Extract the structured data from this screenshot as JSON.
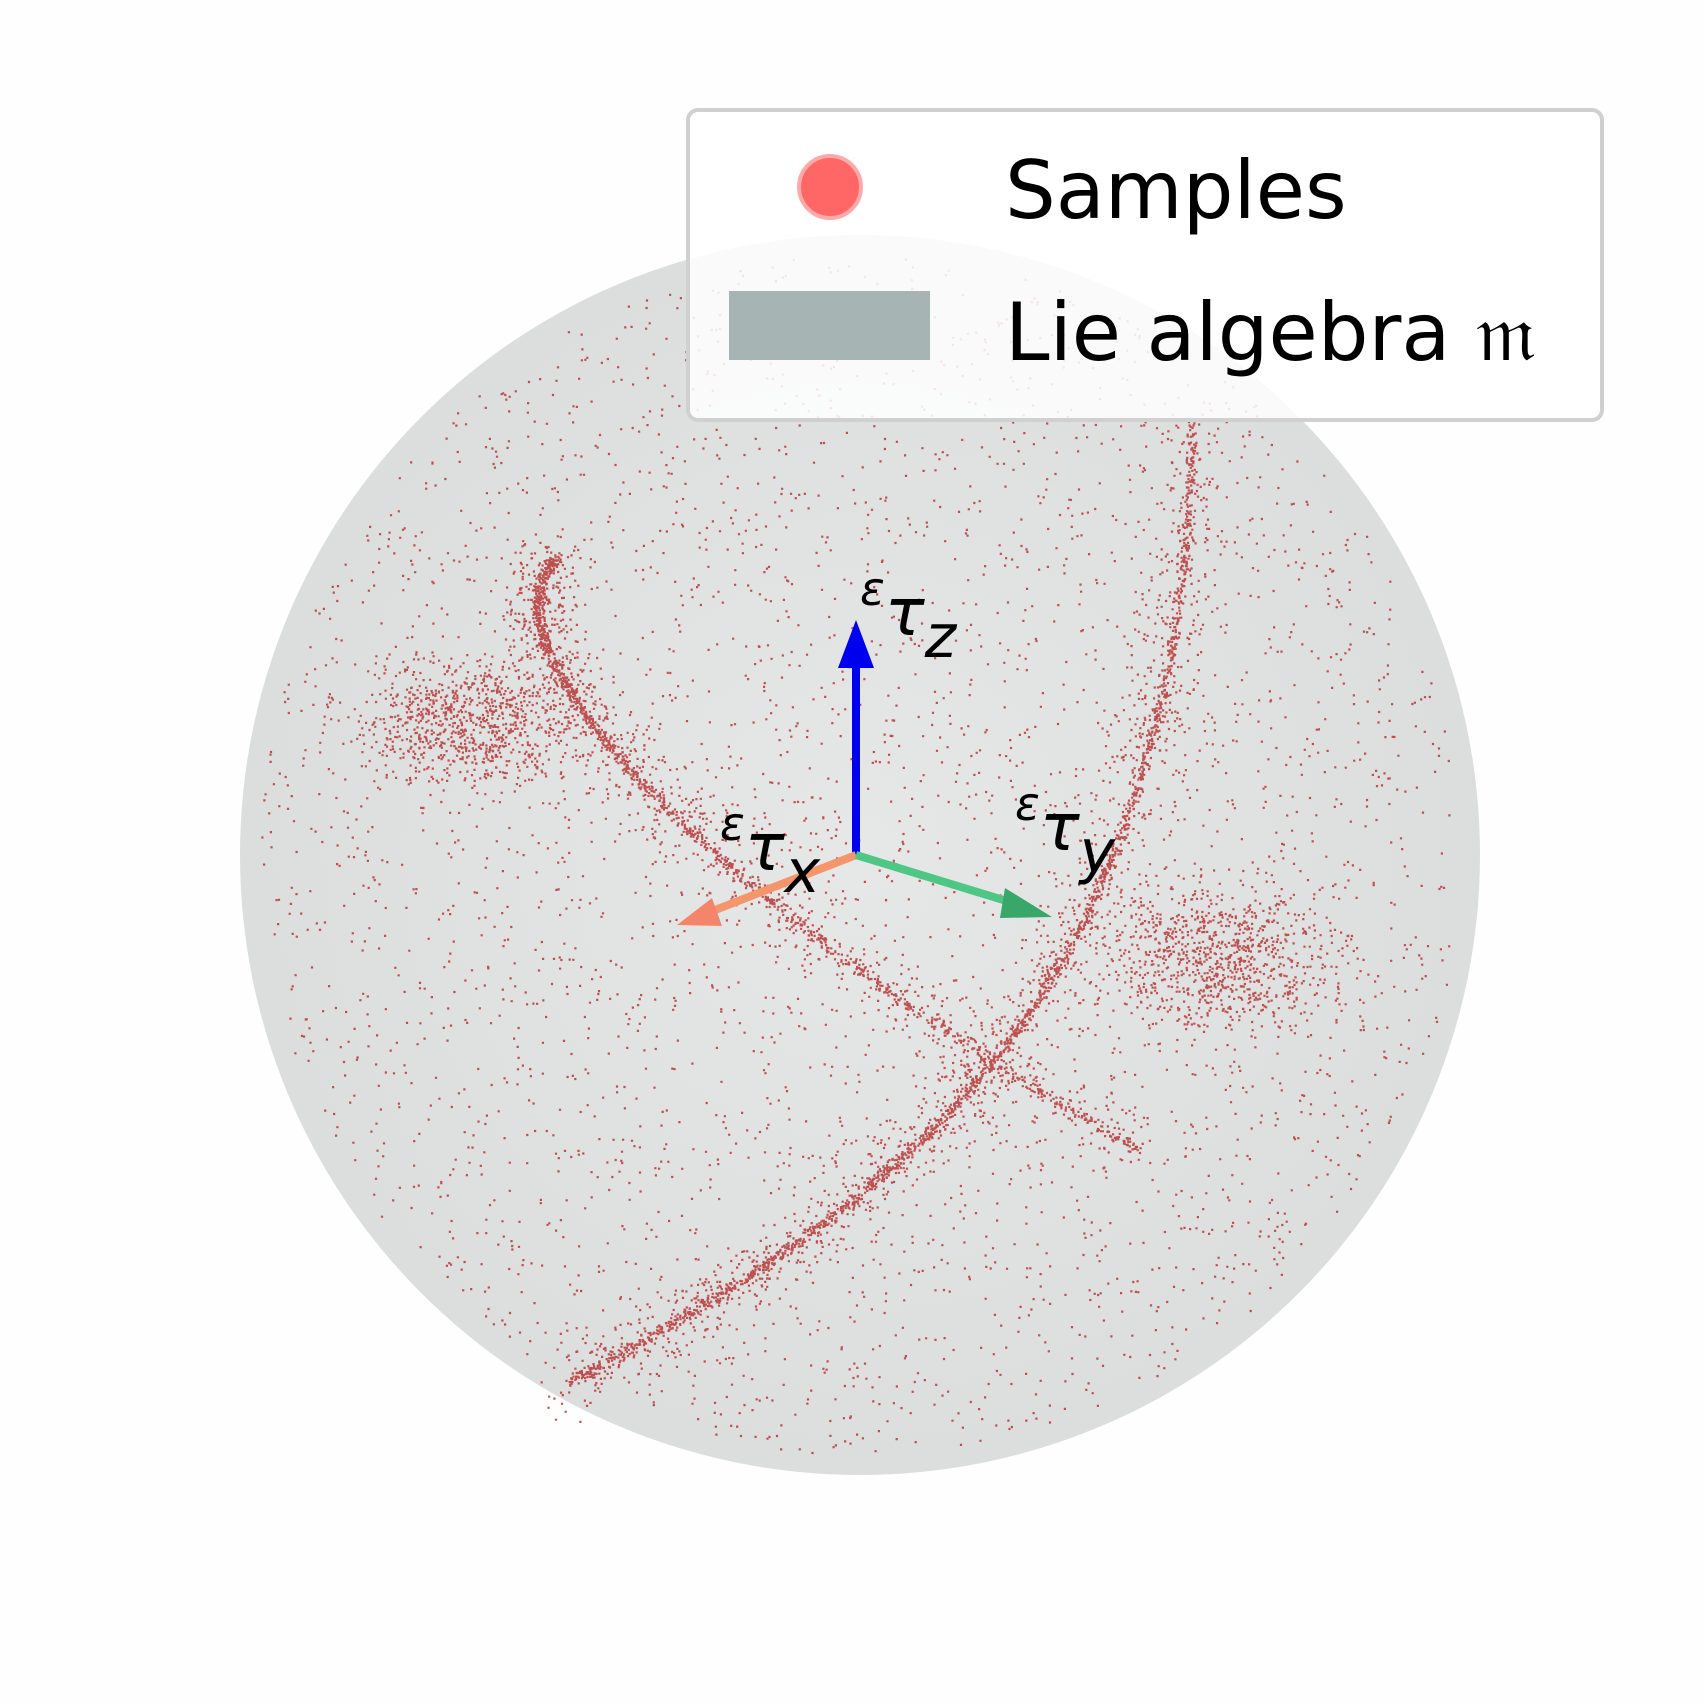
{
  "legend": {
    "items": [
      {
        "label": "Samples"
      },
      {
        "label": "Lie algebra 𝔪"
      }
    ]
  },
  "axes": {
    "x": {
      "sup": "ε",
      "base": "τ",
      "sub": "x"
    },
    "y": {
      "sup": "ε",
      "base": "τ",
      "sub": "y"
    },
    "z": {
      "sup": "ε",
      "base": "τ",
      "sub": "z"
    }
  }
}
